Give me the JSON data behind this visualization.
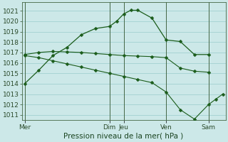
{
  "xlabel": "Pression niveau de la mer( hPa )",
  "background_color": "#cce8e8",
  "grid_color": "#99cccc",
  "line_color": "#1a5c1a",
  "ylim": [
    1010.5,
    1021.8
  ],
  "yticks": [
    1011,
    1012,
    1013,
    1014,
    1015,
    1016,
    1017,
    1018,
    1019,
    1020,
    1021
  ],
  "day_labels": [
    "Mer",
    "Dim",
    "Jeu",
    "Ven",
    "Sam"
  ],
  "day_positions": [
    0,
    6,
    7,
    10,
    13
  ],
  "xlim": [
    -0.2,
    14.2
  ],
  "curve1_x": [
    0,
    1,
    2,
    3,
    4,
    5,
    6,
    6.5,
    7,
    7.5,
    8,
    9,
    10,
    11,
    12,
    13
  ],
  "curve1_y": [
    1014.0,
    1015.3,
    1016.7,
    1017.5,
    1018.7,
    1019.3,
    1019.5,
    1020.0,
    1020.7,
    1021.05,
    1021.05,
    1020.3,
    1018.2,
    1018.05,
    1016.8,
    1016.8
  ],
  "curve2_x": [
    0,
    1,
    2,
    3,
    4,
    5,
    6,
    7,
    8,
    9,
    10,
    11,
    12,
    13
  ],
  "curve2_y": [
    1016.8,
    1017.0,
    1017.1,
    1017.05,
    1017.0,
    1016.9,
    1016.8,
    1016.7,
    1016.65,
    1016.6,
    1016.5,
    1015.5,
    1015.2,
    1015.1
  ],
  "curve3_x": [
    0,
    1,
    2,
    3,
    4,
    5,
    6,
    7,
    8,
    9,
    10,
    11,
    12,
    13,
    13.5,
    14
  ],
  "curve3_y": [
    1016.7,
    1016.5,
    1016.2,
    1015.9,
    1015.6,
    1015.3,
    1015.0,
    1014.7,
    1014.4,
    1014.1,
    1013.2,
    1011.5,
    1010.6,
    1012.0,
    1012.5,
    1013.0
  ],
  "fontsize_label": 7.5,
  "fontsize_tick": 6.5,
  "marker_size": 2.5
}
